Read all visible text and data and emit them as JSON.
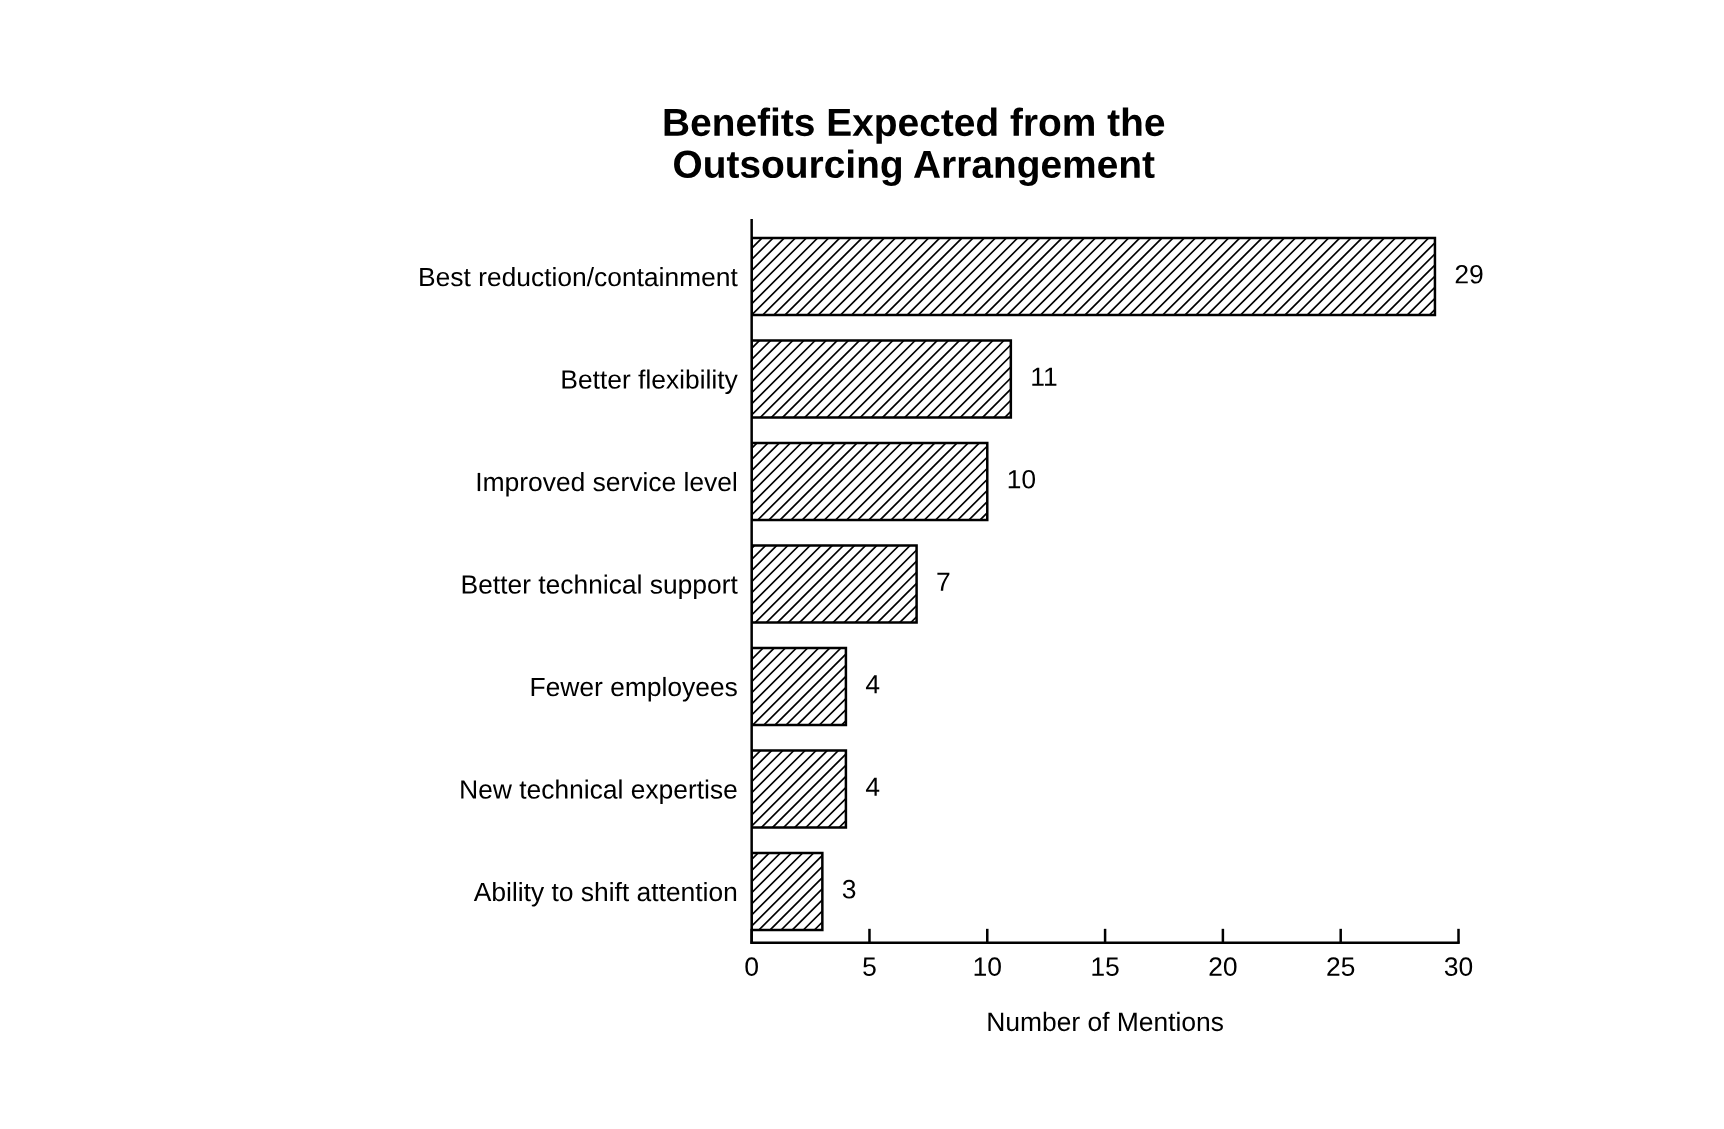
{
  "chart_data": {
    "type": "bar",
    "orientation": "horizontal",
    "title": "Benefits Expected from the\nOutsourcing Arrangement",
    "xlabel": "Number of Mentions",
    "categories": [
      "Best reduction/containment",
      "Better flexibility",
      "Improved service level",
      "Better technical support",
      "Fewer employees",
      "New technical expertise",
      "Ability to shift attention"
    ],
    "values": [
      29,
      11,
      10,
      7,
      4,
      4,
      3
    ],
    "color": "#000000",
    "xlim": [
      0,
      30
    ],
    "xticks": [
      0,
      5,
      10,
      15,
      20,
      25,
      30
    ],
    "data_labels": true,
    "grid": false,
    "legend": false
  }
}
